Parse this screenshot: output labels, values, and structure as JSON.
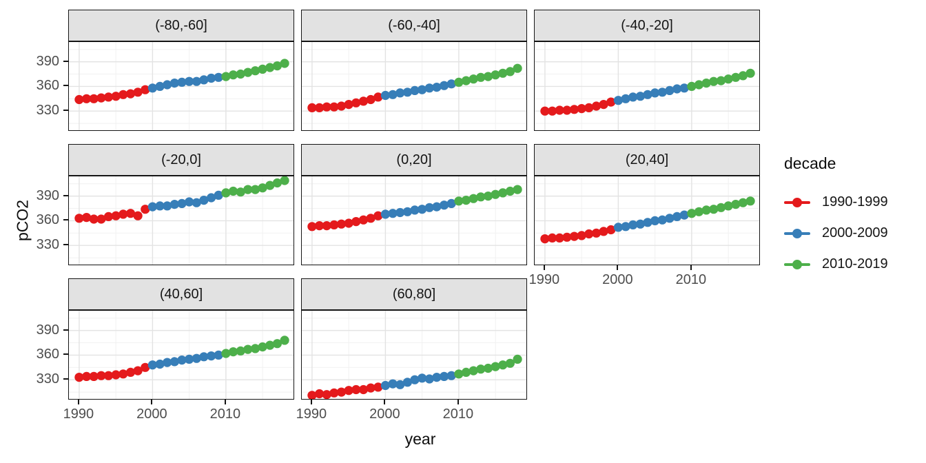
{
  "chart_data": {
    "type": "scatter",
    "title": "",
    "xlabel": "year",
    "ylabel": "pCO2",
    "x_ticks": [
      1990,
      2000,
      2010
    ],
    "y_ticks": [
      330,
      360,
      390
    ],
    "xlim": [
      1988.6,
      2019.4
    ],
    "ylim": [
      305,
      414
    ],
    "grid": "major and minor, light grey on white",
    "legend_position": "right",
    "x": [
      1990,
      1991,
      1992,
      1993,
      1994,
      1995,
      1996,
      1997,
      1998,
      1999,
      2000,
      2001,
      2002,
      2003,
      2004,
      2005,
      2006,
      2007,
      2008,
      2009,
      2010,
      2011,
      2012,
      2013,
      2014,
      2015,
      2016,
      2017,
      2018
    ],
    "legend": {
      "title": "decade",
      "entries": [
        {
          "label": "1990-1999",
          "color": "#E41A1C",
          "start": 1990,
          "end": 1999
        },
        {
          "label": "2000-2009",
          "color": "#377EB8",
          "start": 2000,
          "end": 2009
        },
        {
          "label": "2010-2019",
          "color": "#4DAF4A",
          "start": 2010,
          "end": 2019
        }
      ]
    },
    "facets": [
      {
        "label": "(-80,-60]",
        "values": [
          344,
          345,
          345,
          346,
          347,
          348,
          350,
          351,
          353,
          356,
          358,
          360,
          362,
          364,
          365,
          366,
          366,
          368,
          370,
          371,
          372,
          374,
          375,
          377,
          379,
          381,
          383,
          385,
          388
        ]
      },
      {
        "label": "(-60,-40]",
        "values": [
          334,
          334,
          335,
          335,
          336,
          338,
          340,
          342,
          344,
          347,
          349,
          350,
          352,
          353,
          355,
          356,
          358,
          359,
          361,
          363,
          365,
          367,
          369,
          371,
          372,
          374,
          376,
          378,
          382
        ]
      },
      {
        "label": "(-40,-20]",
        "values": [
          330,
          330,
          331,
          331,
          332,
          333,
          334,
          336,
          338,
          341,
          343,
          345,
          347,
          348,
          350,
          352,
          353,
          355,
          357,
          358,
          360,
          362,
          364,
          366,
          367,
          369,
          371,
          373,
          376
        ]
      },
      {
        "label": "(-20,0]",
        "values": [
          363,
          364,
          362,
          362,
          365,
          366,
          368,
          369,
          366,
          374,
          377,
          378,
          378,
          380,
          381,
          383,
          382,
          385,
          388,
          391,
          394,
          396,
          395,
          398,
          398,
          400,
          403,
          406,
          409
        ]
      },
      {
        "label": "(0,20]",
        "values": [
          353,
          354,
          354,
          355,
          356,
          357,
          359,
          361,
          363,
          366,
          368,
          369,
          370,
          371,
          373,
          374,
          376,
          377,
          379,
          381,
          384,
          385,
          387,
          389,
          390,
          392,
          394,
          396,
          398
        ]
      },
      {
        "label": "(20,40]",
        "values": [
          338,
          339,
          339,
          340,
          341,
          342,
          344,
          345,
          347,
          349,
          352,
          353,
          355,
          356,
          358,
          360,
          361,
          363,
          365,
          367,
          369,
          371,
          373,
          374,
          376,
          378,
          380,
          382,
          384
        ]
      },
      {
        "label": "(40,60]",
        "values": [
          333,
          334,
          334,
          335,
          335,
          336,
          337,
          339,
          341,
          345,
          348,
          349,
          351,
          352,
          354,
          355,
          356,
          358,
          359,
          360,
          362,
          364,
          365,
          367,
          368,
          370,
          372,
          374,
          378
        ]
      },
      {
        "label": "(60,80]",
        "values": [
          311,
          313,
          312,
          314,
          315,
          317,
          318,
          318,
          320,
          321,
          323,
          325,
          324,
          327,
          330,
          332,
          331,
          333,
          334,
          335,
          337,
          339,
          341,
          343,
          344,
          346,
          348,
          350,
          355
        ]
      }
    ],
    "style_colors": {
      "point_red": "#E41A1C",
      "point_blue": "#377EB8",
      "point_green": "#4DAF4A",
      "strip_bg": "#e2e2e2",
      "panel_border": "#141414",
      "grid_major": "#e3e3e3",
      "grid_minor": "#f1f1f1",
      "axis_text": "#4d4d4d"
    }
  }
}
